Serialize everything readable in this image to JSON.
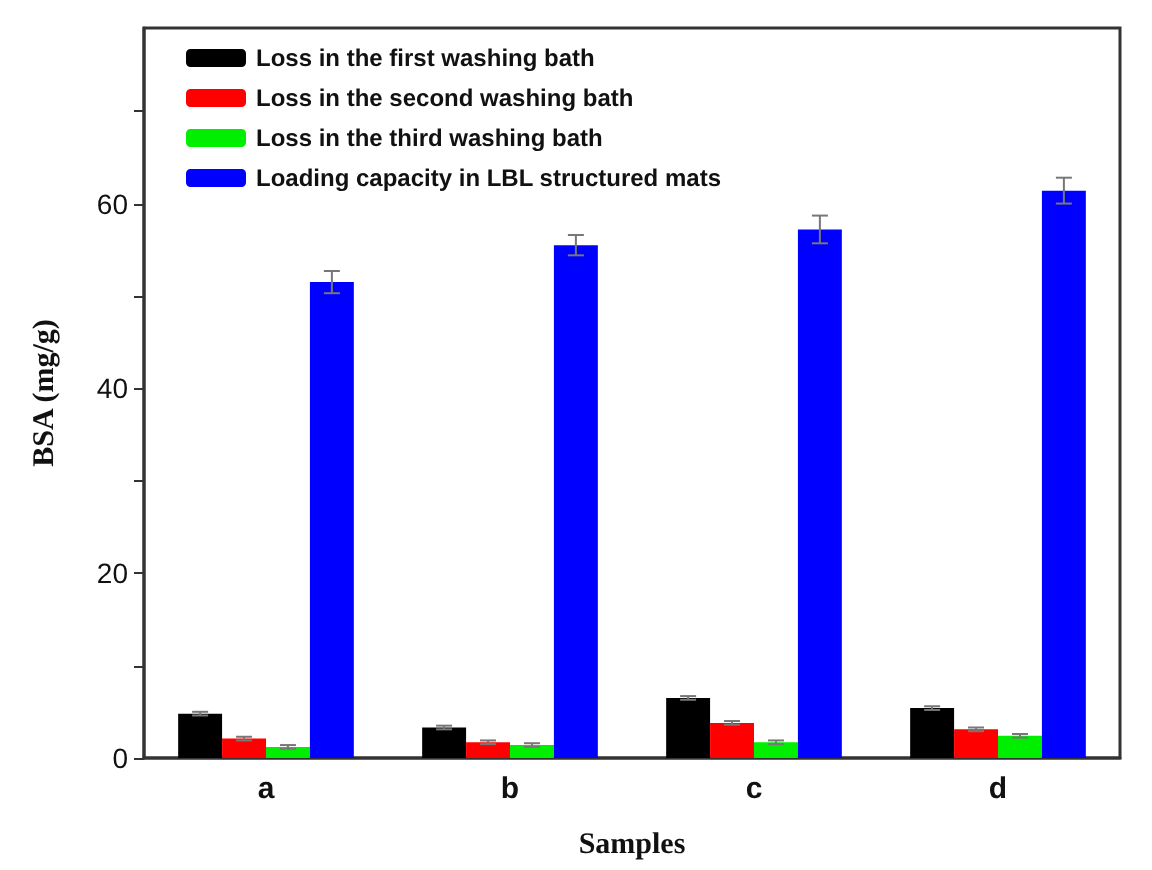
{
  "chart_data": {
    "type": "bar",
    "xlabel": "Samples",
    "ylabel": "BSA (mg/g)",
    "categories": [
      "a",
      "b",
      "c",
      "d"
    ],
    "series": [
      {
        "name": "Loss in the first washing bath",
        "color": "#000000",
        "values": [
          4.8,
          3.3,
          6.5,
          5.4
        ],
        "errors": [
          0.2,
          0.2,
          0.2,
          0.2
        ]
      },
      {
        "name": "Loss in the second washing bath",
        "color": "#ff0000",
        "values": [
          2.1,
          1.7,
          3.8,
          3.1
        ],
        "errors": [
          0.2,
          0.2,
          0.2,
          0.2
        ]
      },
      {
        "name": "Loss in the third washing bath",
        "color": "#00ee00",
        "values": [
          1.2,
          1.4,
          1.7,
          2.4
        ],
        "errors": [
          0.2,
          0.2,
          0.2,
          0.2
        ]
      },
      {
        "name": "Loading capacity in LBL structured mats",
        "color": "#0000ff",
        "values": [
          51.5,
          55.5,
          57.2,
          61.4
        ],
        "errors": [
          1.2,
          1.1,
          1.5,
          1.4
        ]
      }
    ],
    "ylim": [
      0,
      79
    ],
    "yticks": [
      0,
      {
        "value": 10,
        "label": null
      },
      20,
      {
        "value": 30,
        "label": null
      },
      40,
      {
        "value": 50,
        "label": null
      },
      60,
      {
        "value": 70,
        "label": null
      }
    ],
    "legend": "top left",
    "grid": false
  }
}
